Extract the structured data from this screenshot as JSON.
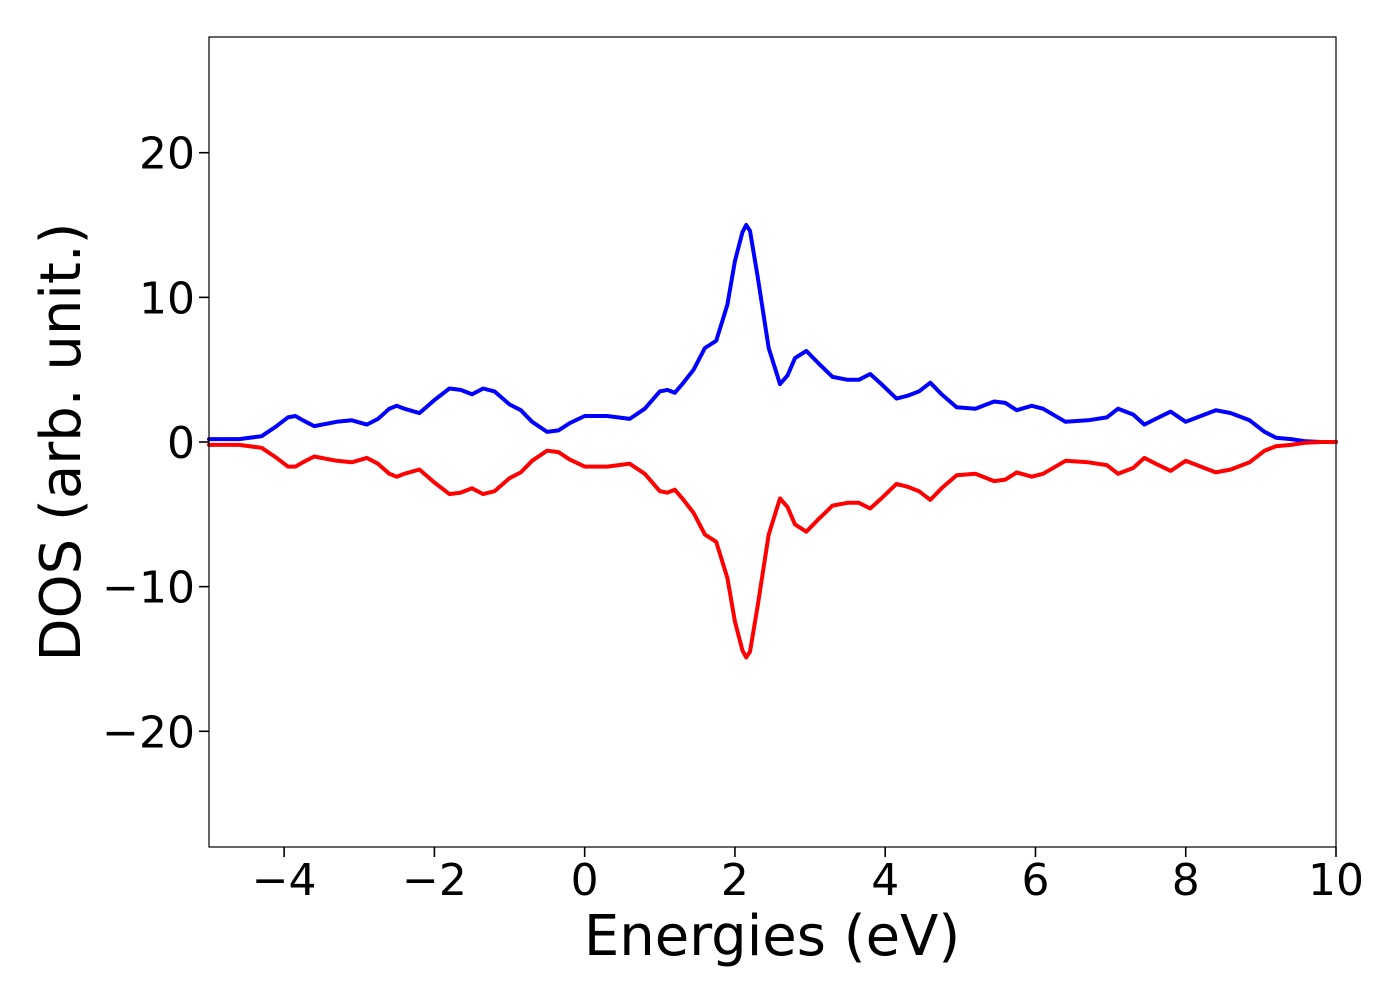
{
  "chart_data": {
    "type": "line",
    "title": "",
    "xlabel": "Energies (eV)",
    "ylabel": "DOS (arb. unit.)",
    "xlim": [
      -5,
      10
    ],
    "ylim": [
      -28,
      28
    ],
    "xticks": [
      -4,
      -2,
      0,
      2,
      4,
      6,
      8,
      10
    ],
    "yticks": [
      -20,
      -10,
      0,
      10,
      20
    ],
    "xtick_labels": [
      "−4",
      "−2",
      "0",
      "2",
      "4",
      "6",
      "8",
      "10"
    ],
    "ytick_labels": [
      "−20",
      "−10",
      "0",
      "10",
      "20"
    ],
    "grid": false,
    "legend": null,
    "series": [
      {
        "color": "#0000ff",
        "x": [
          -5.0,
          -4.6,
          -4.3,
          -4.1,
          -3.95,
          -3.85,
          -3.75,
          -3.6,
          -3.3,
          -3.1,
          -2.9,
          -2.75,
          -2.6,
          -2.5,
          -2.4,
          -2.2,
          -2.0,
          -1.8,
          -1.65,
          -1.5,
          -1.35,
          -1.2,
          -1.0,
          -0.85,
          -0.7,
          -0.5,
          -0.35,
          -0.2,
          0.0,
          0.3,
          0.6,
          0.8,
          1.0,
          1.1,
          1.2,
          1.3,
          1.45,
          1.6,
          1.75,
          1.9,
          2.0,
          2.1,
          2.15,
          2.2,
          2.3,
          2.45,
          2.6,
          2.7,
          2.8,
          2.95,
          3.1,
          3.3,
          3.5,
          3.65,
          3.8,
          3.95,
          4.15,
          4.3,
          4.45,
          4.6,
          4.75,
          4.95,
          5.2,
          5.45,
          5.6,
          5.75,
          5.95,
          6.1,
          6.4,
          6.7,
          6.95,
          7.1,
          7.3,
          7.45,
          7.6,
          7.8,
          8.0,
          8.2,
          8.4,
          8.6,
          8.85,
          9.05,
          9.2,
          9.4,
          9.6,
          9.8,
          10.0
        ],
        "y": [
          0.2,
          0.2,
          0.4,
          1.1,
          1.7,
          1.8,
          1.5,
          1.1,
          1.4,
          1.5,
          1.2,
          1.6,
          2.3,
          2.5,
          2.3,
          2.0,
          2.9,
          3.7,
          3.6,
          3.3,
          3.7,
          3.5,
          2.6,
          2.2,
          1.4,
          0.7,
          0.8,
          1.3,
          1.8,
          1.8,
          1.6,
          2.3,
          3.5,
          3.6,
          3.4,
          4.0,
          5.0,
          6.5,
          7.0,
          9.5,
          12.5,
          14.5,
          15.0,
          14.6,
          11.5,
          6.5,
          4.0,
          4.6,
          5.8,
          6.3,
          5.5,
          4.5,
          4.3,
          4.3,
          4.7,
          4.0,
          3.0,
          3.2,
          3.5,
          4.1,
          3.3,
          2.4,
          2.3,
          2.8,
          2.7,
          2.2,
          2.5,
          2.3,
          1.4,
          1.5,
          1.7,
          2.3,
          1.9,
          1.2,
          1.6,
          2.1,
          1.4,
          1.8,
          2.2,
          2.0,
          1.5,
          0.7,
          0.3,
          0.2,
          0.05,
          0.0,
          0.0
        ]
      },
      {
        "color": "#ff0000",
        "x": [
          -5.0,
          -4.6,
          -4.3,
          -4.1,
          -3.95,
          -3.85,
          -3.75,
          -3.6,
          -3.3,
          -3.1,
          -2.9,
          -2.75,
          -2.6,
          -2.5,
          -2.4,
          -2.2,
          -2.0,
          -1.8,
          -1.65,
          -1.5,
          -1.35,
          -1.2,
          -1.0,
          -0.85,
          -0.7,
          -0.5,
          -0.35,
          -0.2,
          0.0,
          0.3,
          0.6,
          0.8,
          1.0,
          1.1,
          1.2,
          1.3,
          1.45,
          1.6,
          1.75,
          1.9,
          2.0,
          2.1,
          2.15,
          2.2,
          2.3,
          2.45,
          2.6,
          2.7,
          2.8,
          2.95,
          3.1,
          3.3,
          3.5,
          3.65,
          3.8,
          3.95,
          4.15,
          4.3,
          4.45,
          4.6,
          4.75,
          4.95,
          5.2,
          5.45,
          5.6,
          5.75,
          5.95,
          6.1,
          6.4,
          6.7,
          6.95,
          7.1,
          7.3,
          7.45,
          7.6,
          7.8,
          8.0,
          8.2,
          8.4,
          8.6,
          8.85,
          9.05,
          9.2,
          9.4,
          9.6,
          9.8,
          10.0
        ],
        "y": [
          -0.2,
          -0.2,
          -0.4,
          -1.1,
          -1.7,
          -1.7,
          -1.4,
          -1.0,
          -1.3,
          -1.4,
          -1.1,
          -1.5,
          -2.2,
          -2.4,
          -2.2,
          -1.9,
          -2.8,
          -3.6,
          -3.5,
          -3.2,
          -3.6,
          -3.4,
          -2.5,
          -2.1,
          -1.3,
          -0.6,
          -0.7,
          -1.2,
          -1.7,
          -1.7,
          -1.5,
          -2.2,
          -3.4,
          -3.5,
          -3.3,
          -3.9,
          -4.9,
          -6.4,
          -6.9,
          -9.4,
          -12.4,
          -14.4,
          -14.9,
          -14.5,
          -11.4,
          -6.4,
          -3.9,
          -4.5,
          -5.7,
          -6.2,
          -5.4,
          -4.4,
          -4.2,
          -4.2,
          -4.6,
          -3.9,
          -2.9,
          -3.1,
          -3.4,
          -4.0,
          -3.2,
          -2.3,
          -2.2,
          -2.7,
          -2.6,
          -2.1,
          -2.4,
          -2.2,
          -1.3,
          -1.4,
          -1.6,
          -2.2,
          -1.8,
          -1.1,
          -1.5,
          -2.0,
          -1.3,
          -1.7,
          -2.1,
          -1.9,
          -1.4,
          -0.6,
          -0.3,
          -0.2,
          -0.05,
          0.0,
          0.0
        ]
      }
    ]
  }
}
